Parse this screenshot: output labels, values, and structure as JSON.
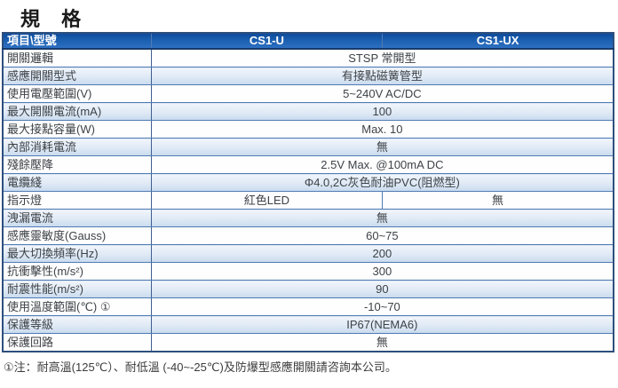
{
  "page": {
    "title": "規 格"
  },
  "table": {
    "header": {
      "item_col": "項目\\型號",
      "models": [
        "CS1-U",
        "CS1-UX"
      ]
    },
    "rows": [
      {
        "label": "開關邏輯",
        "value": "STSP 常開型"
      },
      {
        "label": "感應開關型式",
        "value": "有接點磁簧管型"
      },
      {
        "label": "使用電壓範圍(V)",
        "value": "5~240V AC/DC"
      },
      {
        "label": "最大開關電流(mA)",
        "value": "100"
      },
      {
        "label": "最大接點容量(W)",
        "value": "Max. 10"
      },
      {
        "label": "內部消耗電流",
        "value": "無"
      },
      {
        "label": "殘餘壓降",
        "value": "2.5V Max. @100mA DC"
      },
      {
        "label": "電纜綫",
        "value": "Φ4.0,2C灰色耐油PVC(阻燃型)"
      },
      {
        "label": "指示燈",
        "values": [
          "紅色LED",
          "無"
        ]
      },
      {
        "label": "洩漏電流",
        "value": "無"
      },
      {
        "label": "感應靈敏度(Gauss)",
        "value": "60~75"
      },
      {
        "label": "最大切換頻率(Hz)",
        "value": "200"
      },
      {
        "label": "抗衝擊性(m/s²)",
        "value": "300"
      },
      {
        "label": "耐震性能(m/s²)",
        "value": "90"
      },
      {
        "label": "使用溫度範圍(℃) ①",
        "value": "-10~70"
      },
      {
        "label": "保護等級",
        "value": "IP67(NEMA6)"
      },
      {
        "label": "保護回路",
        "value": "無"
      }
    ]
  },
  "footnote": "①注：耐高溫(125℃）、耐低溫 (-40~-25℃)及防爆型感應開關請咨詢本公司。",
  "colors": {
    "header_bg_top": "#0e4c9c",
    "header_bg_bottom": "#2e70c2",
    "header_text": "#ffffff",
    "alt_row_top": "#f1f5fb",
    "alt_row_bottom": "#c9dbee",
    "border": "#4f7ab3",
    "outer_border": "#2e4f7d",
    "text": "#3d4247"
  }
}
